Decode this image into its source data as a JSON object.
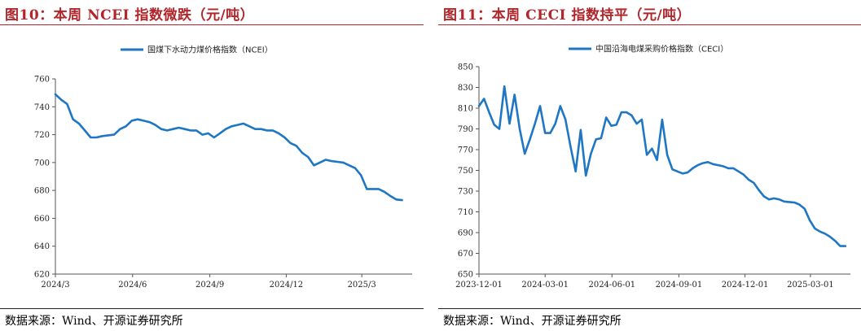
{
  "charts": [
    {
      "title": "图10：本周 NCEI 指数微跌（元/吨）",
      "source": "数据来源：Wind、开源证券研究所"
    },
    {
      "title": "图11：本周 CECI 指数持平（元/吨）",
      "source": "数据来源：Wind、开源证券研究所"
    }
  ],
  "chart_data": [
    {
      "type": "line",
      "series": [
        {
          "name": "国煤下水动力煤价格指数（NCEI）",
          "color": "#1f77c4",
          "x": [
            "2024-03-01",
            "2024-03-08",
            "2024-03-15",
            "2024-03-22",
            "2024-03-29",
            "2024-04-05",
            "2024-04-12",
            "2024-04-19",
            "2024-04-26",
            "2024-05-03",
            "2024-05-10",
            "2024-05-17",
            "2024-05-24",
            "2024-05-31",
            "2024-06-07",
            "2024-06-14",
            "2024-06-21",
            "2024-06-28",
            "2024-07-05",
            "2024-07-12",
            "2024-07-19",
            "2024-07-26",
            "2024-08-02",
            "2024-08-09",
            "2024-08-16",
            "2024-08-23",
            "2024-08-30",
            "2024-09-06",
            "2024-09-13",
            "2024-09-20",
            "2024-09-27",
            "2024-10-04",
            "2024-10-11",
            "2024-10-18",
            "2024-10-25",
            "2024-11-01",
            "2024-11-08",
            "2024-11-15",
            "2024-11-22",
            "2024-11-29",
            "2024-12-06",
            "2024-12-13",
            "2024-12-20",
            "2024-12-27",
            "2025-01-03",
            "2025-01-10",
            "2025-01-17",
            "2025-01-24",
            "2025-01-31",
            "2025-02-07",
            "2025-02-14",
            "2025-02-21",
            "2025-02-28",
            "2025-03-07",
            "2025-03-14",
            "2025-03-21",
            "2025-03-28",
            "2025-04-04",
            "2025-04-11",
            "2025-04-18"
          ],
          "values": [
            749,
            745,
            742,
            731,
            728,
            723,
            718,
            718,
            719,
            719.5,
            720,
            724,
            726,
            730,
            731,
            730,
            729,
            727,
            724,
            723,
            724,
            725,
            724,
            723,
            723,
            720,
            721,
            718,
            721,
            724,
            726,
            727,
            728,
            726,
            724,
            724,
            723,
            723,
            721,
            718,
            714,
            712,
            707,
            704,
            698,
            700,
            702,
            701,
            700.5,
            700,
            698,
            696,
            691,
            681,
            681,
            681,
            679,
            676,
            673.5,
            673
          ]
        }
      ],
      "xlabel": "",
      "ylabel": "",
      "x_ticks": [
        "2024/3",
        "2024/6",
        "2024/9",
        "2024/12",
        "2025/3"
      ],
      "x_tick_dates": [
        "2024-03-01",
        "2024-06-01",
        "2024-09-01",
        "2024-12-01",
        "2025-03-01"
      ],
      "x_range": [
        "2024-03-01",
        "2025-04-30"
      ],
      "ylim": [
        620,
        760
      ],
      "y_ticks": [
        620,
        640,
        660,
        680,
        700,
        720,
        740,
        760
      ],
      "grid": false,
      "legend_position": "top-center"
    },
    {
      "type": "line",
      "series": [
        {
          "name": "中国沿海电煤采购价格指数（CECI）",
          "color": "#1f77c4",
          "x": [
            "2023-12-01",
            "2023-12-08",
            "2023-12-15",
            "2023-12-22",
            "2023-12-29",
            "2024-01-05",
            "2024-01-12",
            "2024-01-19",
            "2024-01-26",
            "2024-02-02",
            "2024-02-09",
            "2024-02-16",
            "2024-02-23",
            "2024-03-01",
            "2024-03-08",
            "2024-03-15",
            "2024-03-22",
            "2024-03-29",
            "2024-04-05",
            "2024-04-12",
            "2024-04-19",
            "2024-04-26",
            "2024-05-03",
            "2024-05-10",
            "2024-05-17",
            "2024-05-24",
            "2024-05-31",
            "2024-06-07",
            "2024-06-14",
            "2024-06-21",
            "2024-06-28",
            "2024-07-05",
            "2024-07-12",
            "2024-07-19",
            "2024-07-26",
            "2024-08-02",
            "2024-08-09",
            "2024-08-16",
            "2024-08-23",
            "2024-08-30",
            "2024-09-06",
            "2024-09-13",
            "2024-09-20",
            "2024-09-27",
            "2024-10-04",
            "2024-10-11",
            "2024-10-18",
            "2024-10-25",
            "2024-11-01",
            "2024-11-08",
            "2024-11-15",
            "2024-11-22",
            "2024-11-29",
            "2024-12-06",
            "2024-12-13",
            "2024-12-20",
            "2024-12-27",
            "2025-01-03",
            "2025-01-10",
            "2025-01-17",
            "2025-01-24",
            "2025-01-31",
            "2025-02-07",
            "2025-02-14",
            "2025-02-21",
            "2025-02-28",
            "2025-03-07",
            "2025-03-14",
            "2025-03-21",
            "2025-03-28",
            "2025-04-04",
            "2025-04-11",
            "2025-04-18"
          ],
          "values": [
            812,
            819,
            806,
            794,
            790,
            831,
            795,
            823,
            790,
            766,
            780,
            795,
            812,
            786,
            786,
            795,
            812,
            799,
            773,
            749,
            789,
            745,
            766,
            780,
            781,
            801,
            793,
            794,
            806,
            806,
            803,
            795,
            799,
            765,
            771,
            760,
            799,
            765,
            751,
            749,
            747,
            748,
            752,
            755,
            757,
            758,
            756,
            755,
            754,
            752,
            752,
            749,
            746,
            741,
            738,
            731,
            725,
            722,
            723,
            722,
            720,
            719.5,
            719,
            717,
            713,
            702,
            694,
            691,
            689,
            686,
            682,
            677,
            677
          ]
        }
      ],
      "xlabel": "",
      "ylabel": "",
      "x_ticks": [
        "2023-12-01",
        "2024-03-01",
        "2024-06-01",
        "2024-09-01",
        "2024-12-01",
        "2025-03-01"
      ],
      "x_tick_dates": [
        "2023-12-01",
        "2024-03-01",
        "2024-06-01",
        "2024-09-01",
        "2024-12-01",
        "2025-03-01"
      ],
      "x_range": [
        "2023-12-01",
        "2025-04-25"
      ],
      "ylim": [
        650,
        850
      ],
      "y_ticks": [
        650,
        670,
        690,
        710,
        730,
        750,
        770,
        790,
        810,
        830,
        850
      ],
      "grid": false,
      "legend_position": "top-center"
    }
  ]
}
